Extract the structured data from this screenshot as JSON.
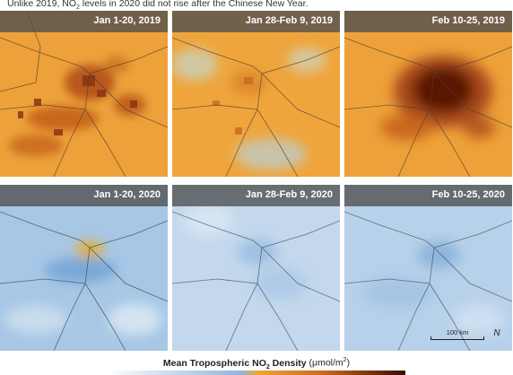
{
  "caption": {
    "pre": "Unlike 2019, NO",
    "sub": "2",
    "post": " levels in 2020 did not rise after the Chinese New Year."
  },
  "panels": [
    {
      "label": "Jan 1-20, 2019"
    },
    {
      "label": "Jan 28-Feb 9, 2019"
    },
    {
      "label": "Feb 10-25, 2019"
    },
    {
      "label": "Jan 1-20, 2020"
    },
    {
      "label": "Jan 28-Feb 9, 2020"
    },
    {
      "label": "Feb 10-25, 2020"
    }
  ],
  "scale_bar": {
    "label": "100 km",
    "north": "N"
  },
  "legend": {
    "title_pre": "Mean Tropospheric NO",
    "title_sub": "2",
    "title_post": " Density",
    "units_pre": " (μmol/m",
    "units_sup": "2",
    "units_post": ")"
  },
  "colors": {
    "low": "#a9c9e6",
    "mid": "#f0a535",
    "high": "#3a0a00",
    "header": "#4e4e4e"
  }
}
